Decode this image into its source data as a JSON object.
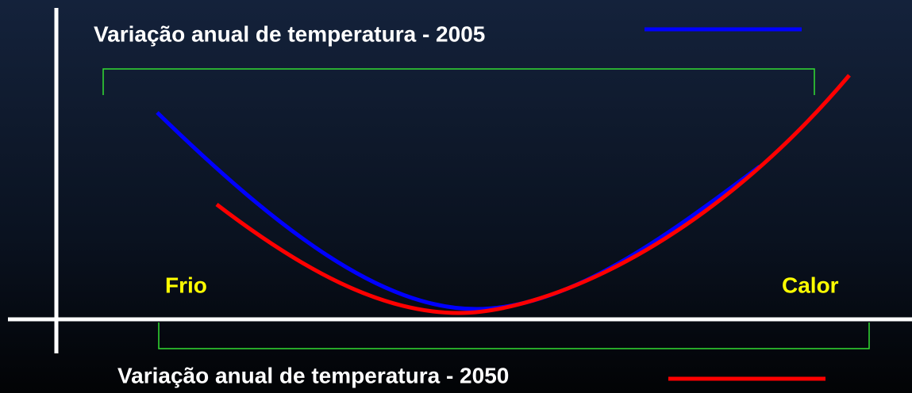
{
  "legend": [
    {
      "label": "Variação anual de temperatura - 2005"
    },
    {
      "label": "Variação anual de temperatura - 2050"
    }
  ],
  "labels": {
    "cold": "Frio",
    "hot": "Calor"
  }
}
